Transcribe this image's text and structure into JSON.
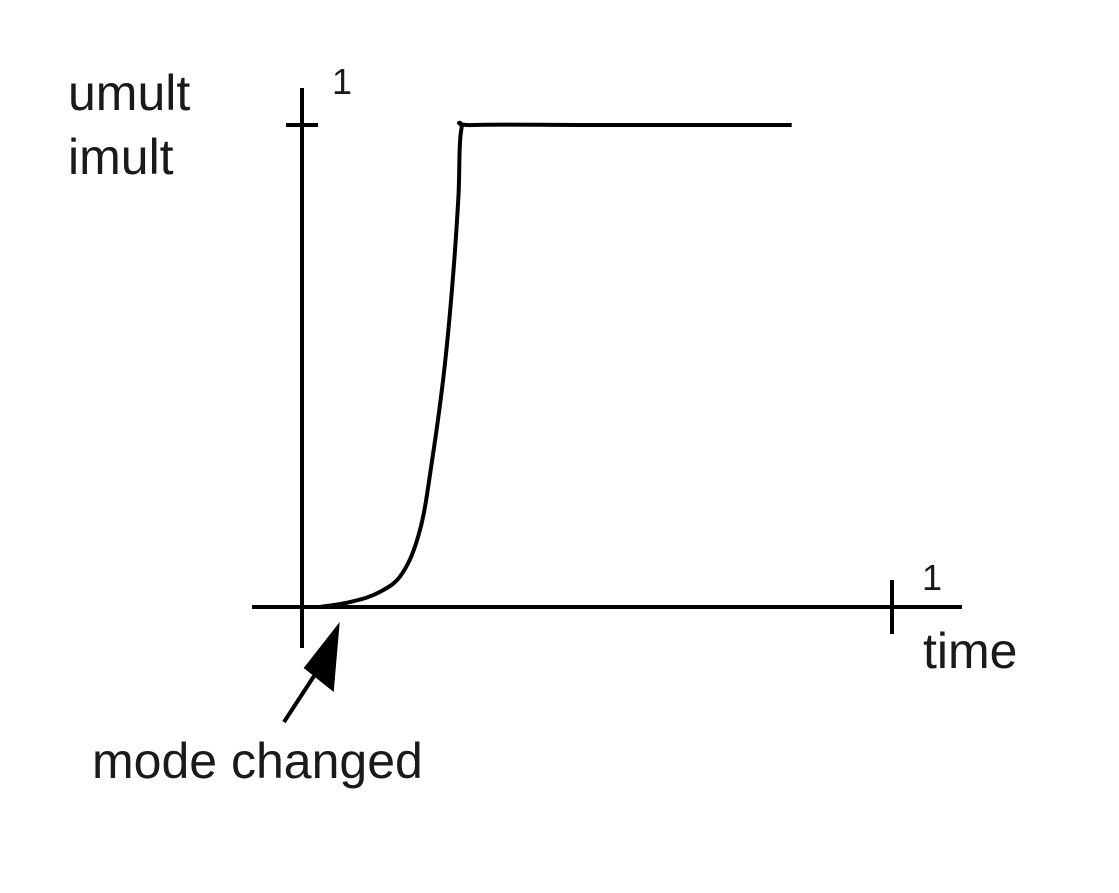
{
  "chart_data": {
    "type": "line",
    "title": "",
    "xlabel": "time",
    "ylabel": [
      "umult",
      "imult"
    ],
    "xtick_labels": [
      "1"
    ],
    "ytick_labels": [
      "1"
    ],
    "xlim": [
      0,
      1
    ],
    "ylim": [
      0,
      1
    ],
    "grid": false,
    "series": [
      {
        "x": [
          0.03,
          0.08,
          0.13,
          0.17,
          0.2,
          0.22,
          0.24,
          0.255,
          0.265,
          0.27,
          0.29,
          0.5,
          0.83
        ],
        "y": [
          0.0,
          0.01,
          0.03,
          0.07,
          0.16,
          0.3,
          0.48,
          0.67,
          0.85,
          0.99,
          1.0,
          1.0,
          1.0
        ]
      }
    ],
    "annotations": [
      {
        "text": "mode changed",
        "x": 0.03,
        "y": 0.0
      }
    ],
    "color": "#000000"
  }
}
